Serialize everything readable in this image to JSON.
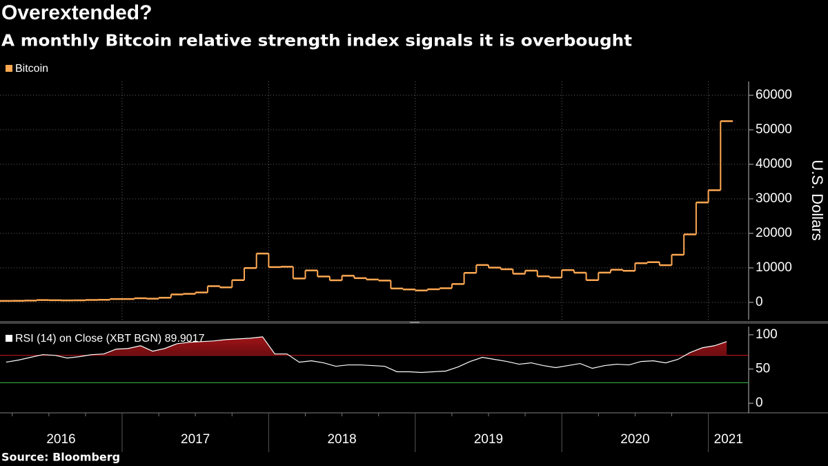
{
  "chart_data": {
    "type": "step",
    "title": "Overextended?",
    "subtitle": "A monthly Bitcoin relative strength index signals it is overbought",
    "source": "Source:  Bloomberg",
    "y_label": "U.S. Dollars",
    "x": [
      "2016-03",
      "2016-04",
      "2016-05",
      "2016-06",
      "2016-07",
      "2016-08",
      "2016-09",
      "2016-10",
      "2016-11",
      "2016-12",
      "2017-01",
      "2017-02",
      "2017-03",
      "2017-04",
      "2017-05",
      "2017-06",
      "2017-07",
      "2017-08",
      "2017-09",
      "2017-10",
      "2017-11",
      "2017-12",
      "2018-01",
      "2018-02",
      "2018-03",
      "2018-04",
      "2018-05",
      "2018-06",
      "2018-07",
      "2018-08",
      "2018-09",
      "2018-10",
      "2018-11",
      "2018-12",
      "2019-01",
      "2019-02",
      "2019-03",
      "2019-04",
      "2019-05",
      "2019-06",
      "2019-07",
      "2019-08",
      "2019-09",
      "2019-10",
      "2019-11",
      "2019-12",
      "2020-01",
      "2020-02",
      "2020-03",
      "2020-04",
      "2020-05",
      "2020-06",
      "2020-07",
      "2020-08",
      "2020-09",
      "2020-10",
      "2020-11",
      "2020-12",
      "2021-01",
      "2021-02"
    ],
    "xticks": [
      "2016",
      "2017",
      "2018",
      "2019",
      "2020",
      "2021"
    ],
    "series": [
      {
        "name": "Bitcoin",
        "color": "#ffa852",
        "values": [
          416,
          448,
          531,
          673,
          624,
          574,
          609,
          700,
          742,
          964,
          970,
          1190,
          1080,
          1348,
          2300,
          2480,
          2875,
          4700,
          4340,
          6450,
          9950,
          14150,
          10220,
          10330,
          6930,
          9240,
          7500,
          6400,
          7730,
          7030,
          6620,
          6320,
          4020,
          3740,
          3460,
          3810,
          4100,
          5320,
          8560,
          10820,
          10080,
          9600,
          8290,
          9200,
          7560,
          7190,
          9350,
          8600,
          6440,
          8630,
          9450,
          9140,
          11350,
          11660,
          10780,
          13800,
          19700,
          28950,
          32500,
          52500
        ]
      }
    ],
    "ylim": [
      -5000,
      64000
    ],
    "yticks": [
      0,
      10000,
      20000,
      30000,
      40000,
      50000,
      60000
    ],
    "grid": true,
    "lower_panel": {
      "type": "line",
      "series": [
        {
          "name": "RSI (14)  on Close (XBT BGN) 89.9017",
          "color": "#ffffff",
          "values": [
            60,
            63,
            67,
            71,
            70,
            66,
            68,
            71,
            72,
            79,
            80,
            84,
            76,
            80,
            87,
            89,
            90,
            91,
            93,
            94,
            95,
            97,
            72,
            72,
            60,
            62,
            59,
            54,
            56,
            56,
            55,
            54,
            46,
            46,
            45,
            46,
            47,
            53,
            61,
            67,
            64,
            61,
            57,
            59,
            55,
            52,
            55,
            58,
            51,
            55,
            57,
            56,
            61,
            62,
            59,
            64,
            74,
            81,
            84,
            90
          ]
        }
      ],
      "ylim": [
        -14,
        112
      ],
      "yticks": [
        0,
        50,
        100
      ],
      "hlines": [
        {
          "value": 70,
          "color": "#c0191c"
        },
        {
          "value": 30,
          "color": "#2e9e3a"
        }
      ]
    }
  }
}
